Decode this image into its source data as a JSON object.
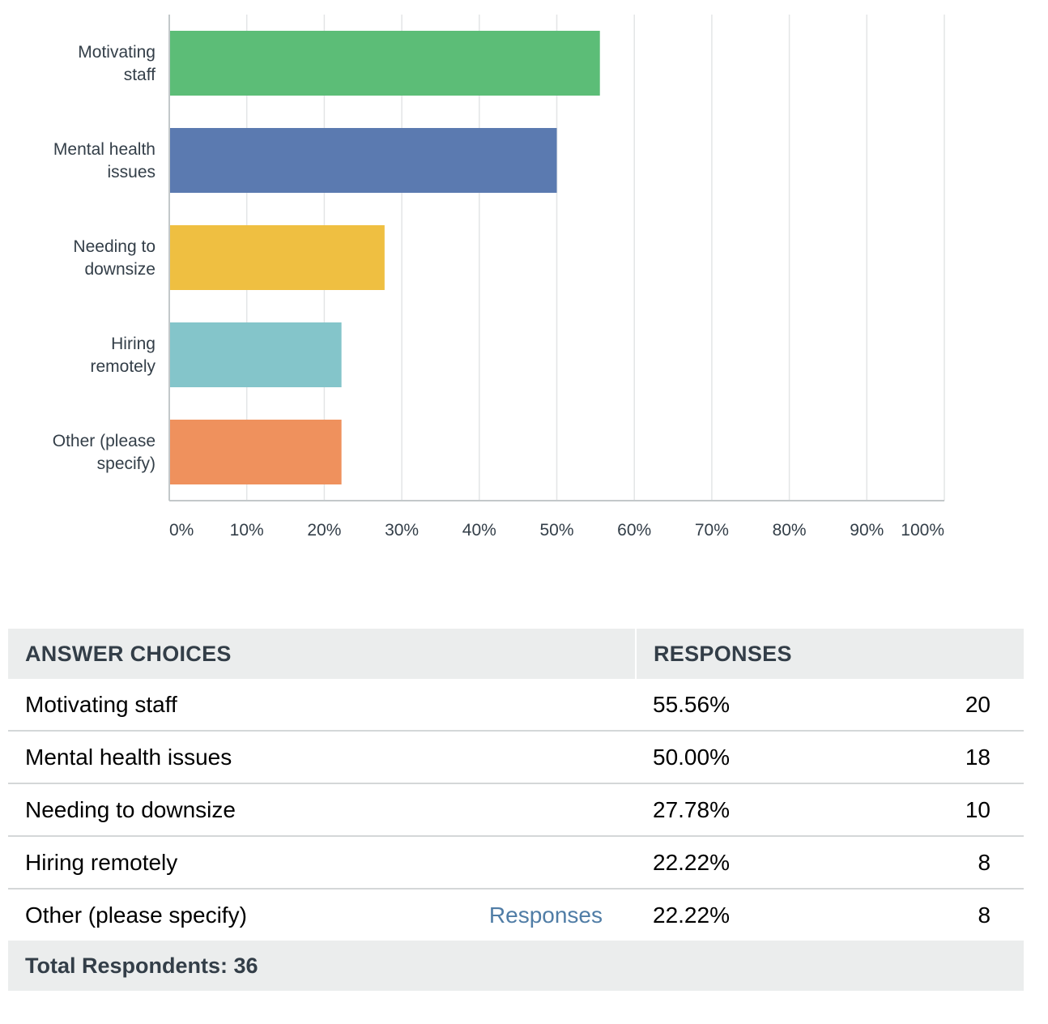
{
  "chart_data": {
    "type": "bar",
    "orientation": "horizontal",
    "categories": [
      "Motivating staff",
      "Mental health issues",
      "Needing to downsize",
      "Hiring remotely",
      "Other (please specify)"
    ],
    "category_label_lines": [
      [
        "Motivating",
        "staff"
      ],
      [
        "Mental health",
        "issues"
      ],
      [
        "Needing to",
        "downsize"
      ],
      [
        "Hiring",
        "remotely"
      ],
      [
        "Other (please",
        "specify)"
      ]
    ],
    "values": [
      55.56,
      50.0,
      27.78,
      22.22,
      22.22
    ],
    "colors": [
      "#5cbd77",
      "#5b7ab0",
      "#efbf41",
      "#84c5ca",
      "#ef915d"
    ],
    "xlim": [
      0,
      100
    ],
    "x_ticks": [
      "0%",
      "10%",
      "20%",
      "30%",
      "40%",
      "50%",
      "60%",
      "70%",
      "80%",
      "90%",
      "100%"
    ],
    "grid": true,
    "title": "",
    "xlabel": "",
    "ylabel": ""
  },
  "table": {
    "headers": {
      "choices": "ANSWER CHOICES",
      "responses": "RESPONSES"
    },
    "rows": [
      {
        "choice": "Motivating staff",
        "link": "",
        "percent": "55.56%",
        "count": "20"
      },
      {
        "choice": "Mental health issues",
        "link": "",
        "percent": "50.00%",
        "count": "18"
      },
      {
        "choice": "Needing to downsize",
        "link": "",
        "percent": "27.78%",
        "count": "10"
      },
      {
        "choice": "Hiring remotely",
        "link": "",
        "percent": "22.22%",
        "count": "8"
      },
      {
        "choice": "Other (please specify)",
        "link": "Responses",
        "percent": "22.22%",
        "count": "8"
      }
    ],
    "total": "Total Respondents: 36"
  }
}
